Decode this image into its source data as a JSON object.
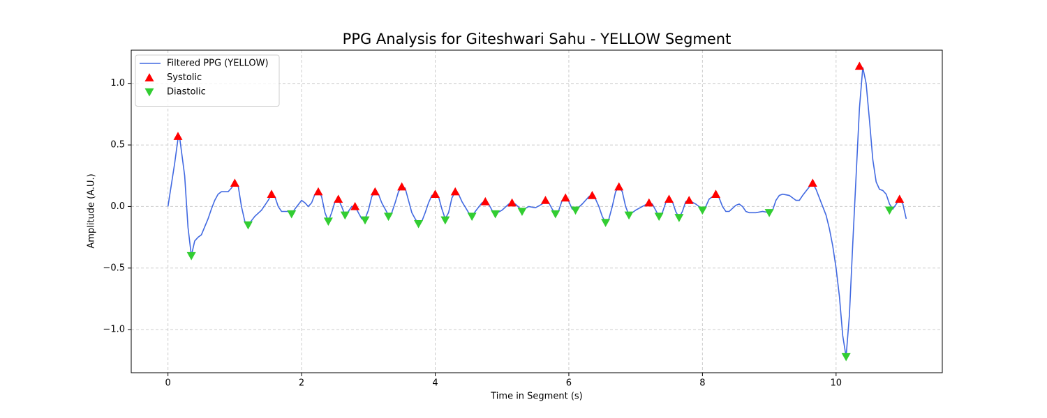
{
  "chart_data": {
    "type": "line",
    "title": "PPG Analysis for Giteshwari Sahu - YELLOW Segment",
    "x_label": "Time in Segment (s)",
    "y_label": "Amplitude (A.U.)",
    "xlim": [
      -0.55,
      11.59
    ],
    "ylim": [
      -1.35,
      1.27
    ],
    "xticks": [
      0,
      2,
      4,
      6,
      8,
      10
    ],
    "yticks": [
      {
        "value": -1.0,
        "label": "−1.0"
      },
      {
        "value": -0.5,
        "label": "−0.5"
      },
      {
        "value": 0.0,
        "label": "0.0"
      },
      0.5,
      {
        "value": 1.0,
        "label": "1.0"
      }
    ],
    "grid": true,
    "legend": "upper left",
    "series": [
      {
        "name": "Filtered PPG (YELLOW)",
        "color": "#4169e1",
        "type": "line",
        "x": [
          0,
          0.1,
          0.15,
          0.17,
          0.25,
          0.3,
          0.35,
          0.4,
          0.45,
          0.5,
          0.6,
          0.65,
          0.7,
          0.75,
          0.8,
          0.9,
          0.95,
          1.0,
          1.05,
          1.1,
          1.15,
          1.2,
          1.3,
          1.4,
          1.5,
          1.55,
          1.6,
          1.65,
          1.7,
          1.8,
          1.85,
          1.9,
          2.0,
          2.05,
          2.1,
          2.15,
          2.2,
          2.25,
          2.3,
          2.35,
          2.4,
          2.45,
          2.5,
          2.55,
          2.6,
          2.65,
          2.7,
          2.75,
          2.8,
          2.85,
          2.9,
          2.95,
          3.0,
          3.05,
          3.1,
          3.15,
          3.2,
          3.3,
          3.35,
          3.4,
          3.45,
          3.5,
          3.55,
          3.6,
          3.65,
          3.7,
          3.75,
          3.8,
          3.85,
          3.9,
          3.95,
          4.0,
          4.05,
          4.1,
          4.15,
          4.2,
          4.25,
          4.3,
          4.35,
          4.4,
          4.5,
          4.55,
          4.6,
          4.7,
          4.75,
          4.8,
          4.85,
          4.9,
          5.0,
          5.1,
          5.15,
          5.2,
          5.3,
          5.4,
          5.5,
          5.6,
          5.65,
          5.7,
          5.75,
          5.8,
          5.85,
          5.9,
          5.95,
          6.0,
          6.05,
          6.1,
          6.2,
          6.3,
          6.35,
          6.4,
          6.45,
          6.5,
          6.55,
          6.6,
          6.65,
          6.7,
          6.75,
          6.8,
          6.85,
          6.9,
          6.95,
          7.0,
          7.1,
          7.2,
          7.25,
          7.3,
          7.35,
          7.4,
          7.45,
          7.5,
          7.55,
          7.6,
          7.65,
          7.7,
          7.75,
          7.8,
          7.9,
          8.0,
          8.05,
          8.1,
          8.2,
          8.25,
          8.3,
          8.35,
          8.4,
          8.5,
          8.55,
          8.6,
          8.65,
          8.7,
          8.8,
          8.9,
          9.0,
          9.05,
          9.1,
          9.15,
          9.2,
          9.3,
          9.4,
          9.45,
          9.5,
          9.6,
          9.65,
          9.7,
          9.8,
          9.85,
          9.9,
          9.95,
          10.0,
          10.05,
          10.1,
          10.15,
          10.2,
          10.25,
          10.3,
          10.35,
          10.4,
          10.45,
          10.5,
          10.55,
          10.6,
          10.65,
          10.7,
          10.75,
          10.8,
          10.85,
          10.9,
          10.95,
          11.0,
          11.05
        ],
        "values": [
          0,
          0.35,
          0.55,
          0.58,
          0.25,
          -0.17,
          -0.4,
          -0.28,
          -0.25,
          -0.23,
          -0.1,
          -0.02,
          0.05,
          0.1,
          0.12,
          0.12,
          0.15,
          0.19,
          0.17,
          0.0,
          -0.12,
          -0.15,
          -0.08,
          -0.03,
          0.05,
          0.1,
          0.08,
          0.0,
          -0.04,
          -0.04,
          -0.06,
          -0.02,
          0.05,
          0.03,
          0.0,
          0.03,
          0.1,
          0.13,
          0.08,
          -0.05,
          -0.12,
          -0.05,
          0.04,
          0.06,
          0.0,
          -0.07,
          -0.04,
          0.0,
          0.0,
          -0.05,
          -0.1,
          -0.1,
          -0.03,
          0.08,
          0.12,
          0.1,
          0.03,
          -0.07,
          -0.05,
          0.03,
          0.12,
          0.16,
          0.15,
          0.05,
          -0.05,
          -0.1,
          -0.14,
          -0.12,
          -0.05,
          0.03,
          0.09,
          0.1,
          0.08,
          -0.02,
          -0.1,
          -0.05,
          0.07,
          0.12,
          0.1,
          0.04,
          -0.05,
          -0.08,
          -0.04,
          0.03,
          0.04,
          0.02,
          -0.03,
          -0.06,
          -0.03,
          0.02,
          0.03,
          0.02,
          -0.03,
          0.0,
          -0.01,
          0.02,
          0.05,
          0.03,
          -0.02,
          -0.06,
          -0.03,
          0.05,
          0.07,
          0.04,
          -0.02,
          -0.03,
          0.02,
          0.08,
          0.1,
          0.06,
          0.0,
          -0.08,
          -0.13,
          -0.1,
          0.0,
          0.12,
          0.16,
          0.12,
          0.0,
          -0.07,
          -0.05,
          -0.03,
          0.0,
          0.03,
          0.02,
          -0.03,
          -0.08,
          -0.05,
          0.03,
          0.06,
          0.04,
          -0.04,
          -0.09,
          -0.04,
          0.04,
          0.05,
          0.02,
          -0.02,
          0.0,
          0.06,
          0.1,
          0.07,
          0.0,
          -0.04,
          -0.04,
          0.01,
          0.02,
          0.0,
          -0.04,
          -0.05,
          -0.05,
          -0.04,
          -0.05,
          -0.03,
          0.05,
          0.09,
          0.1,
          0.09,
          0.05,
          0.05,
          0.09,
          0.16,
          0.19,
          0.14,
          0.0,
          -0.07,
          -0.18,
          -0.32,
          -0.5,
          -0.73,
          -1.05,
          -1.22,
          -0.88,
          -0.3,
          0.25,
          0.8,
          1.13,
          1.0,
          0.7,
          0.38,
          0.2,
          0.14,
          0.13,
          0.1,
          0.02,
          -0.02,
          0.02,
          0.06,
          0.02,
          -0.1
        ]
      },
      {
        "name": "Systolic",
        "color": "#ff0000",
        "type": "scatter",
        "marker": "up",
        "x": [
          0.15,
          1.0,
          1.55,
          2.25,
          2.55,
          2.8,
          3.1,
          3.5,
          4.0,
          4.3,
          4.75,
          5.15,
          5.65,
          5.95,
          6.35,
          6.75,
          7.2,
          7.5,
          7.8,
          8.2,
          9.65,
          10.35,
          10.95
        ],
        "values": [
          0.57,
          0.19,
          0.1,
          0.12,
          0.06,
          0.0,
          0.12,
          0.16,
          0.1,
          0.12,
          0.04,
          0.03,
          0.05,
          0.07,
          0.09,
          0.16,
          0.03,
          0.06,
          0.05,
          0.1,
          0.19,
          1.14,
          0.06
        ]
      },
      {
        "name": "Diastolic",
        "color": "#32cd32",
        "type": "scatter",
        "marker": "down",
        "x": [
          0.35,
          1.2,
          1.85,
          2.4,
          2.65,
          2.95,
          3.3,
          3.75,
          4.15,
          4.55,
          4.9,
          5.3,
          5.8,
          6.1,
          6.55,
          6.9,
          7.35,
          7.65,
          8.0,
          9.0,
          10.15,
          10.8
        ],
        "values": [
          -0.4,
          -0.15,
          -0.06,
          -0.12,
          -0.07,
          -0.11,
          -0.08,
          -0.14,
          -0.11,
          -0.08,
          -0.06,
          -0.04,
          -0.06,
          -0.03,
          -0.13,
          -0.07,
          -0.08,
          -0.09,
          -0.03,
          -0.05,
          -1.22,
          -0.03
        ]
      }
    ]
  }
}
